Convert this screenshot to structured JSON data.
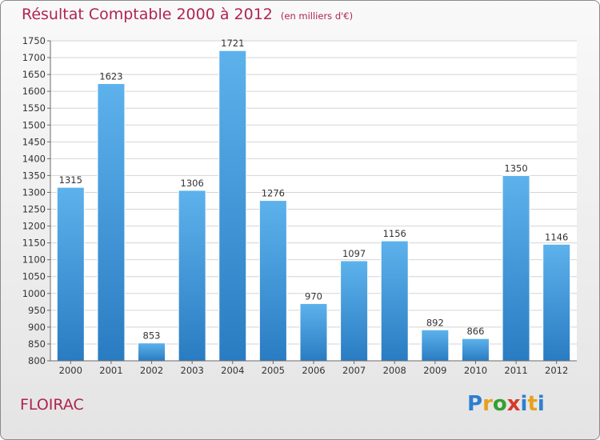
{
  "header": {
    "title": "Résultat Comptable 2000 à 2012",
    "subtitle": "(en milliers d'€)"
  },
  "footer": {
    "city": "FLOIRAC",
    "brand": "Proxiti"
  },
  "colors": {
    "title": "#b0244f",
    "bar_top": "#5db2ec",
    "bar_bottom": "#2a7cc2"
  },
  "chart_data": {
    "type": "bar",
    "title": "Résultat Comptable 2000 à 2012",
    "subtitle": "(en milliers d'€)",
    "xlabel": "",
    "ylabel": "",
    "categories": [
      "2000",
      "2001",
      "2002",
      "2003",
      "2004",
      "2005",
      "2006",
      "2007",
      "2008",
      "2009",
      "2010",
      "2011",
      "2012"
    ],
    "values": [
      1315,
      1623,
      853,
      1306,
      1721,
      1276,
      970,
      1097,
      1156,
      892,
      866,
      1350,
      1146
    ],
    "ylim": [
      800,
      1750
    ],
    "yticks": [
      800,
      850,
      900,
      950,
      1000,
      1050,
      1100,
      1150,
      1200,
      1250,
      1300,
      1350,
      1400,
      1450,
      1500,
      1550,
      1600,
      1650,
      1700,
      1750
    ],
    "grid": true,
    "legend": "none"
  }
}
